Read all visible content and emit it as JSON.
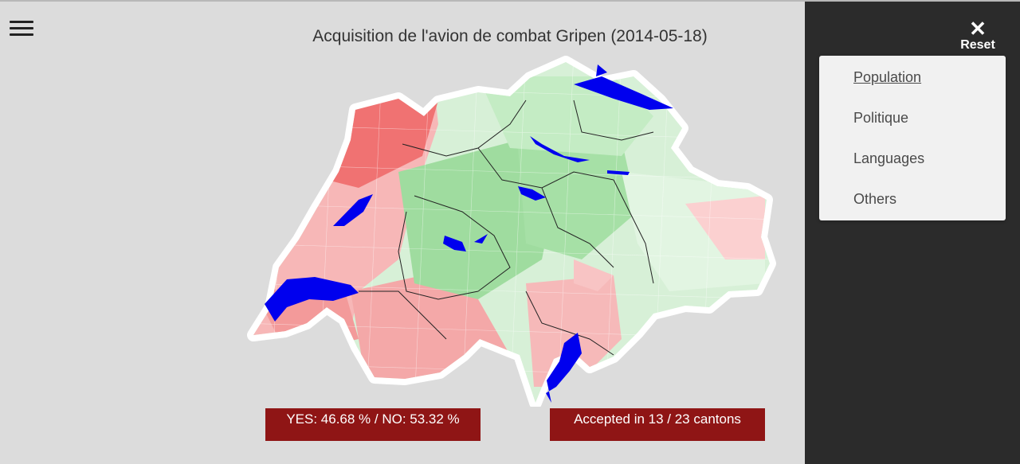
{
  "title": "Acquisition de l'avion de combat Gripen (2014-05-18)",
  "results": {
    "votes": "YES: 46.68 % / NO: 53.32 %",
    "cantons": "Accepted in 13 / 23 cantons"
  },
  "sidebar": {
    "close_label": "Reset",
    "close_icon": "✕",
    "menu": [
      {
        "label": "Population",
        "active": true
      },
      {
        "label": "Politique",
        "active": false
      },
      {
        "label": "Languages",
        "active": false
      },
      {
        "label": "Others",
        "active": false
      }
    ]
  },
  "colors": {
    "yes": "#7fd88a",
    "no": "#f07070",
    "lakes": "#0000ee",
    "banner": "#8f1515",
    "sidebar": "#2b2b2b"
  }
}
